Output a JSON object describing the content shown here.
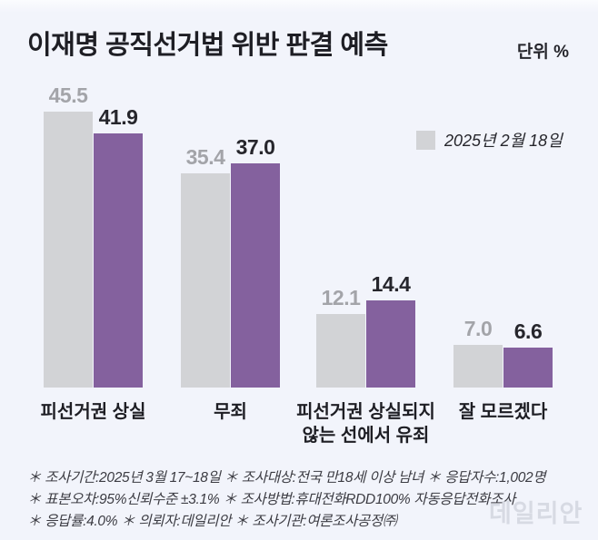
{
  "chart_data": {
    "type": "bar",
    "title": "이재명 공직선거법 위반 판결 예측",
    "unit_label": "단위 %",
    "categories": [
      "피선거권 상실",
      "무죄",
      "피선거권 상실되지\n않는 선에서 유죄",
      "잘 모르겠다"
    ],
    "series": [
      {
        "name": "2025년 2월 18일",
        "color": "#d2d3d6",
        "label_color": "#a3a4a9",
        "values": [
          45.5,
          35.4,
          12.1,
          7.0
        ]
      },
      {
        "name": "",
        "color": "#84619e",
        "label_color": "#26262c",
        "values": [
          41.9,
          37.0,
          14.4,
          6.6
        ]
      }
    ],
    "legend": [
      {
        "label": "2025년 2월 18일",
        "color": "#d2d3d6"
      }
    ],
    "legend_position": "top-right",
    "grid": false,
    "value_labels": "one-decimal"
  },
  "footnotes": [
    "＊ 조사기간:2025년 3월 17~18일  ＊ 조사대상:전국 만18세 이상 남녀  ＊ 응답자수:1,002명",
    "＊ 표본오차:95%신뢰수준 ±3.1%  ＊ 조사방법:휴대전화RDD100% 자동응답전화조사",
    "＊ 응답률:4.0%  ＊ 의뢰자:데일리안  ＊ 조사기관:여론조사공정㈜"
  ],
  "watermark": "데일리안"
}
